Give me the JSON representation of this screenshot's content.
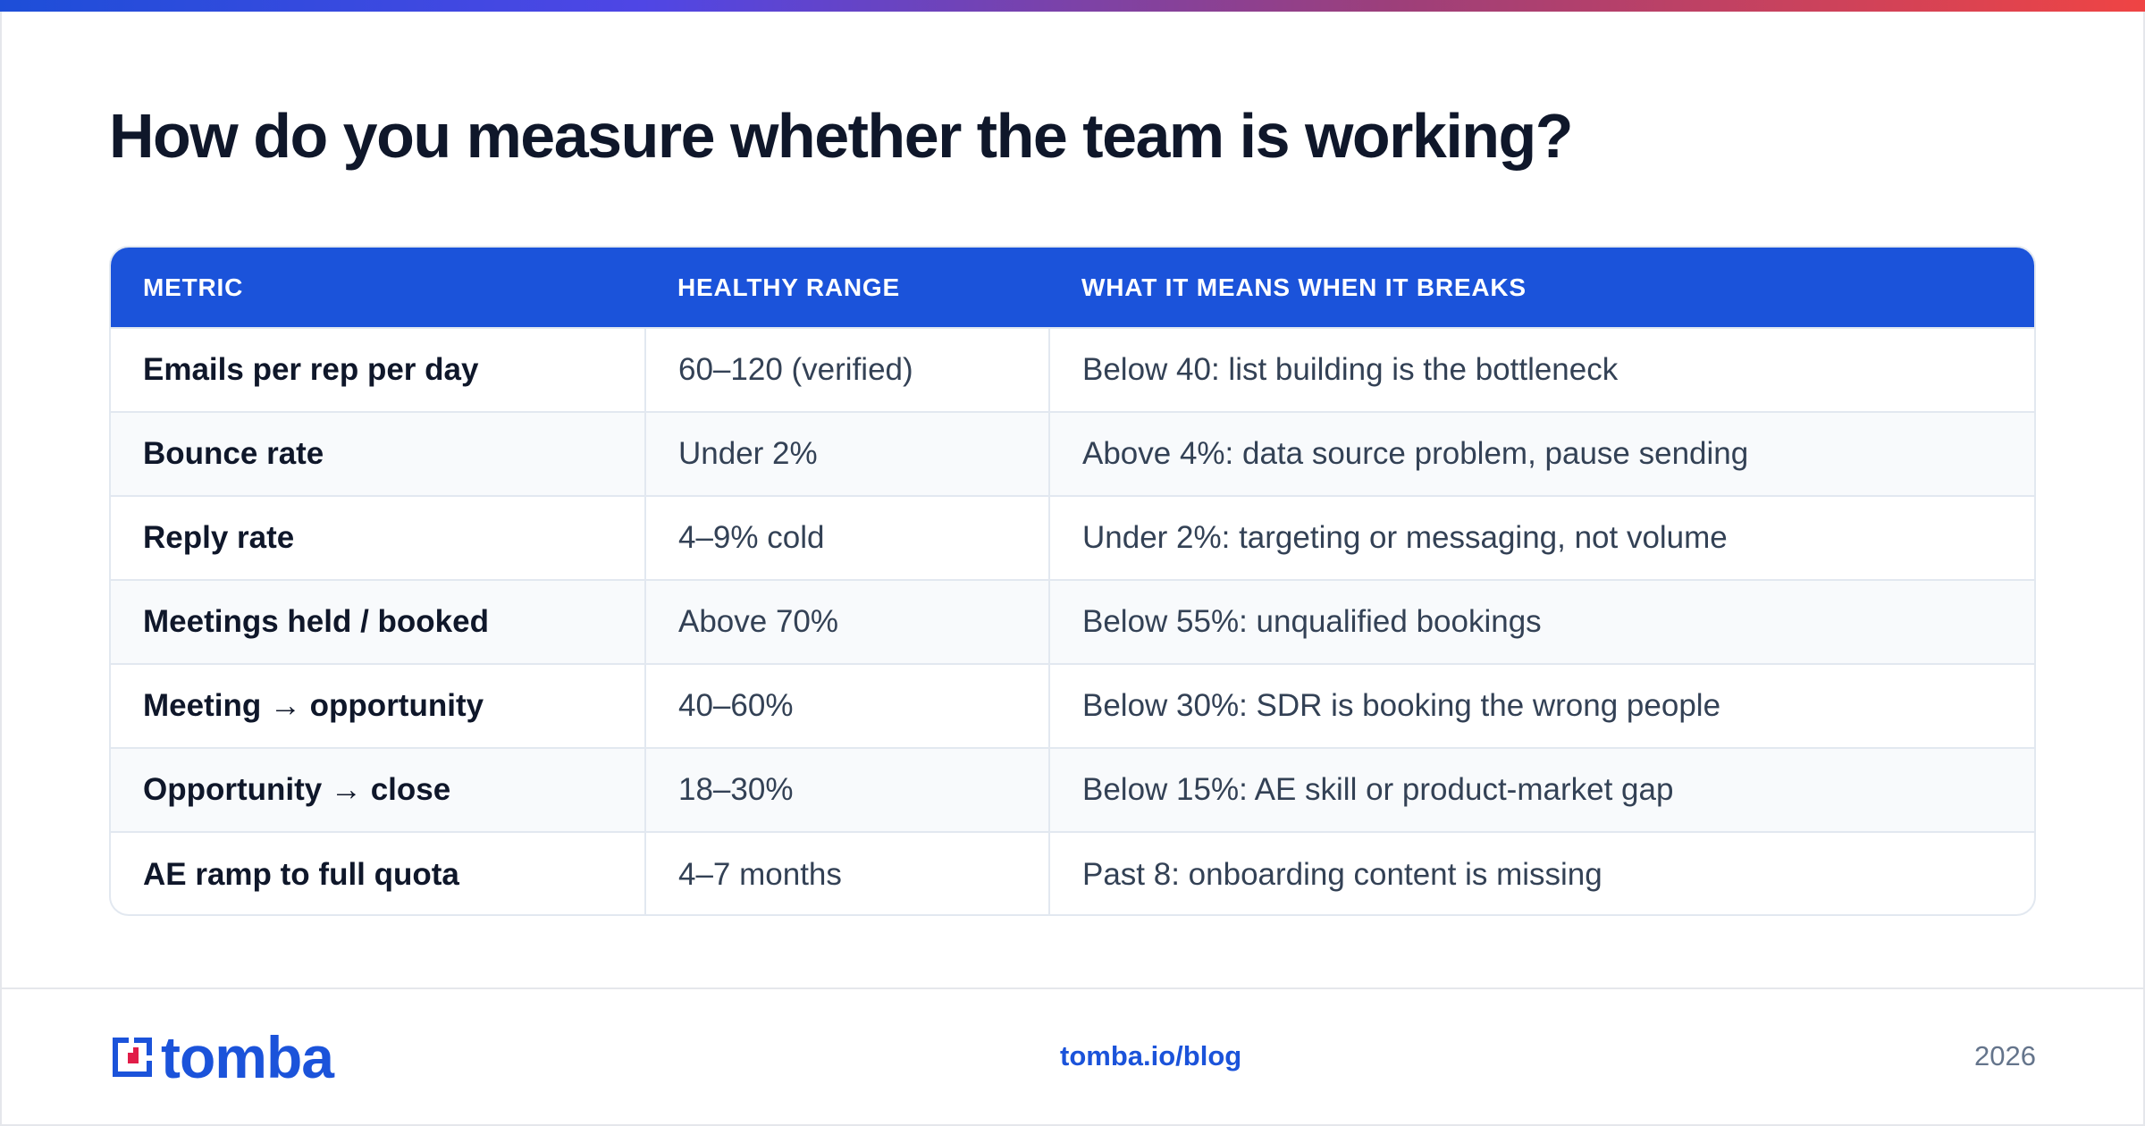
{
  "title": "How do you measure whether the team is working?",
  "colors": {
    "accent": "#1b53da",
    "logo_red": "#e11d48",
    "text": "#0f172a",
    "muted": "#64748b"
  },
  "table": {
    "headers": [
      "METRIC",
      "HEALTHY RANGE",
      "WHAT IT MEANS WHEN IT BREAKS"
    ],
    "rows": [
      [
        "Emails per rep per day",
        "60–120 (verified)",
        "Below 40: list building is the bottleneck"
      ],
      [
        "Bounce rate",
        "Under 2%",
        "Above 4%: data source problem, pause sending"
      ],
      [
        "Reply rate",
        "4–9% cold",
        "Under 2%: targeting or messaging, not volume"
      ],
      [
        "Meetings held / booked",
        "Above 70%",
        "Below 55%: unqualified bookings"
      ],
      [
        "Meeting → opportunity",
        "40–60%",
        "Below 30%: SDR is booking the wrong people"
      ],
      [
        "Opportunity → close",
        "18–30%",
        "Below 15%: AE skill or product-market gap"
      ],
      [
        "AE ramp to full quota",
        "4–7 months",
        "Past 8: onboarding content is missing"
      ]
    ]
  },
  "footer": {
    "logo_text": "tomba",
    "logo_icon": "tomba-logo-icon",
    "link": "tomba.io/blog",
    "year": "2026"
  }
}
